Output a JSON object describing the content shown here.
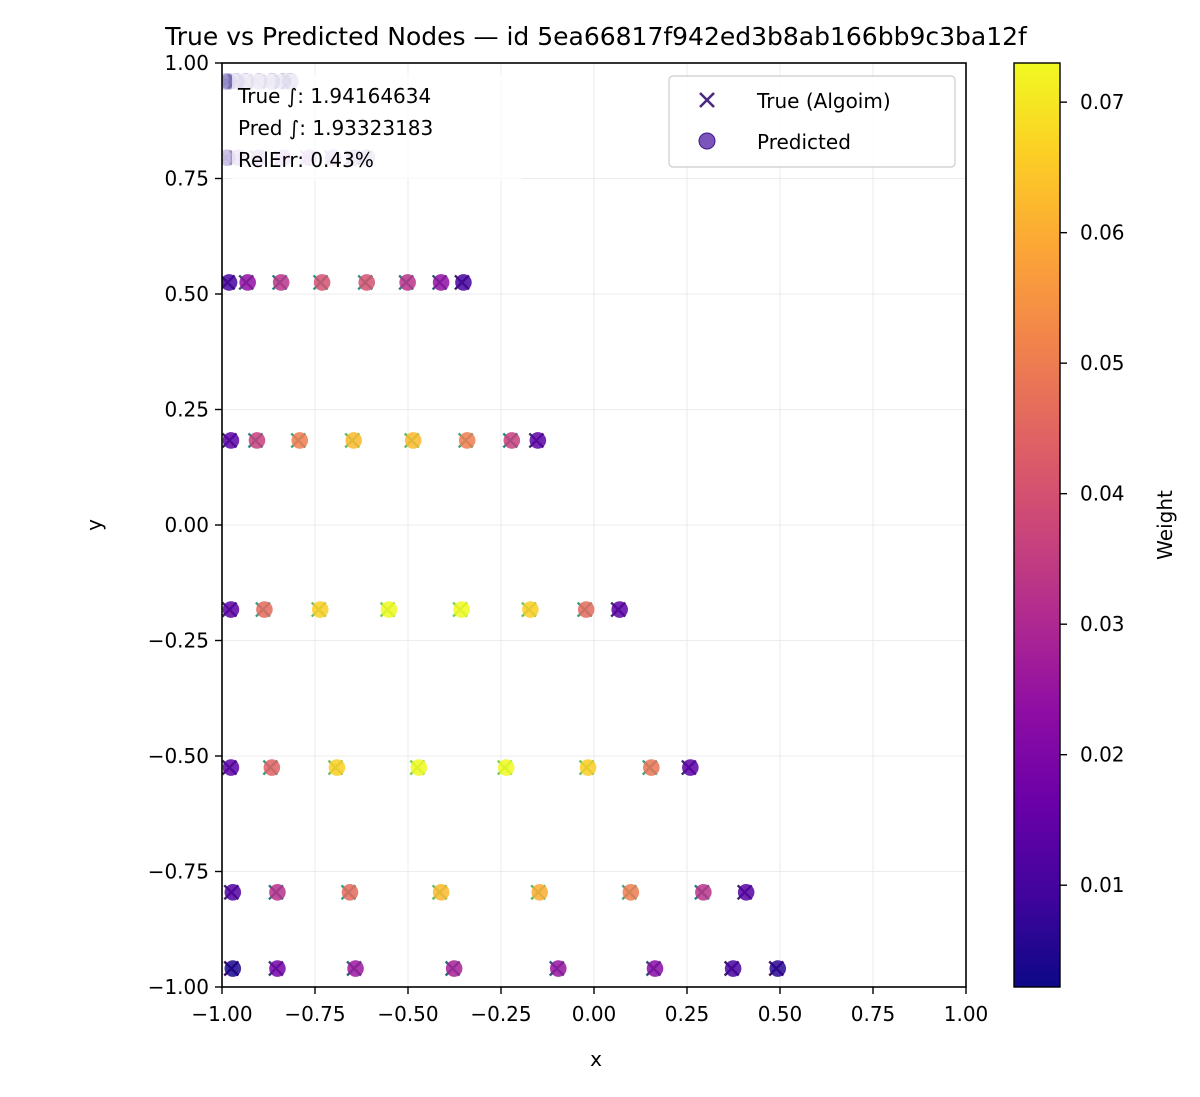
{
  "chart_data": {
    "type": "scatter",
    "title": "True vs Predicted Nodes — id 5ea66817f942ed3b8ab166bb9c3ba12f",
    "xlabel": "x",
    "ylabel": "y",
    "xlim": [
      -1.0,
      1.0
    ],
    "ylim": [
      -1.0,
      1.0
    ],
    "xticks": [
      "−1.00",
      "−0.75",
      "−0.50",
      "−0.25",
      "0.00",
      "0.25",
      "0.50",
      "0.75",
      "1.00"
    ],
    "yticks": [
      "−1.00",
      "−0.75",
      "−0.50",
      "−0.25",
      "0.00",
      "0.25",
      "0.50",
      "0.75",
      "1.00"
    ],
    "grid": true,
    "legend": {
      "placement": "top-right",
      "entries": [
        "True (Algoim)",
        "Predicted"
      ]
    },
    "annotations": [
      "True ∫: 1.94164634",
      "Pred ∫: 1.93323183",
      "RelErr: 0.43%"
    ],
    "colorbar": {
      "label": "Weight",
      "colormap": "plasma",
      "range": [
        0.0022,
        0.073
      ],
      "ticks": [
        "0.01",
        "0.02",
        "0.03",
        "0.04",
        "0.05",
        "0.06",
        "0.07"
      ]
    },
    "rows": [
      {
        "y": -0.96,
        "x": [
          -0.975,
          -0.855,
          -0.645,
          -0.38,
          -0.1,
          0.16,
          0.37,
          0.49
        ],
        "w": [
          0.004,
          0.018,
          0.026,
          0.028,
          0.025,
          0.022,
          0.01,
          0.006
        ]
      },
      {
        "y": -0.795,
        "x": [
          -0.975,
          -0.855,
          -0.66,
          -0.415,
          -0.15,
          0.095,
          0.29,
          0.405
        ],
        "w": [
          0.012,
          0.032,
          0.046,
          0.062,
          0.06,
          0.05,
          0.033,
          0.013
        ]
      },
      {
        "y": -0.525,
        "x": [
          -0.98,
          -0.87,
          -0.695,
          -0.475,
          -0.24,
          -0.02,
          0.15,
          0.255
        ],
        "w": [
          0.014,
          0.044,
          0.066,
          0.073,
          0.073,
          0.066,
          0.048,
          0.014
        ]
      },
      {
        "y": -0.183,
        "x": [
          -0.98,
          -0.89,
          -0.74,
          -0.555,
          -0.36,
          -0.175,
          -0.025,
          0.065
        ],
        "w": [
          0.014,
          0.046,
          0.066,
          0.073,
          0.073,
          0.066,
          0.046,
          0.014
        ]
      },
      {
        "y": 0.183,
        "x": [
          -0.98,
          -0.91,
          -0.795,
          -0.65,
          -0.49,
          -0.345,
          -0.225,
          -0.155
        ],
        "w": [
          0.014,
          0.036,
          0.05,
          0.062,
          0.062,
          0.05,
          0.036,
          0.014
        ]
      },
      {
        "y": 0.525,
        "x": [
          -0.985,
          -0.935,
          -0.845,
          -0.735,
          -0.615,
          -0.505,
          -0.415,
          -0.355
        ],
        "w": [
          0.01,
          0.024,
          0.033,
          0.04,
          0.04,
          0.033,
          0.024,
          0.01
        ]
      },
      {
        "y": 0.795,
        "x": [
          -0.99,
          -0.96,
          -0.905,
          -0.84,
          -0.77,
          -0.705,
          -0.65,
          -0.615
        ],
        "w": [
          0.006,
          0.011,
          0.015,
          0.018,
          0.018,
          0.015,
          0.011,
          0.006
        ]
      },
      {
        "y": 0.96,
        "x": [
          -0.995,
          -0.985,
          -0.965,
          -0.94,
          -0.905,
          -0.87,
          -0.84,
          -0.82
        ],
        "w": [
          0.002,
          0.004,
          0.005,
          0.006,
          0.006,
          0.005,
          0.004,
          0.002
        ]
      }
    ]
  }
}
